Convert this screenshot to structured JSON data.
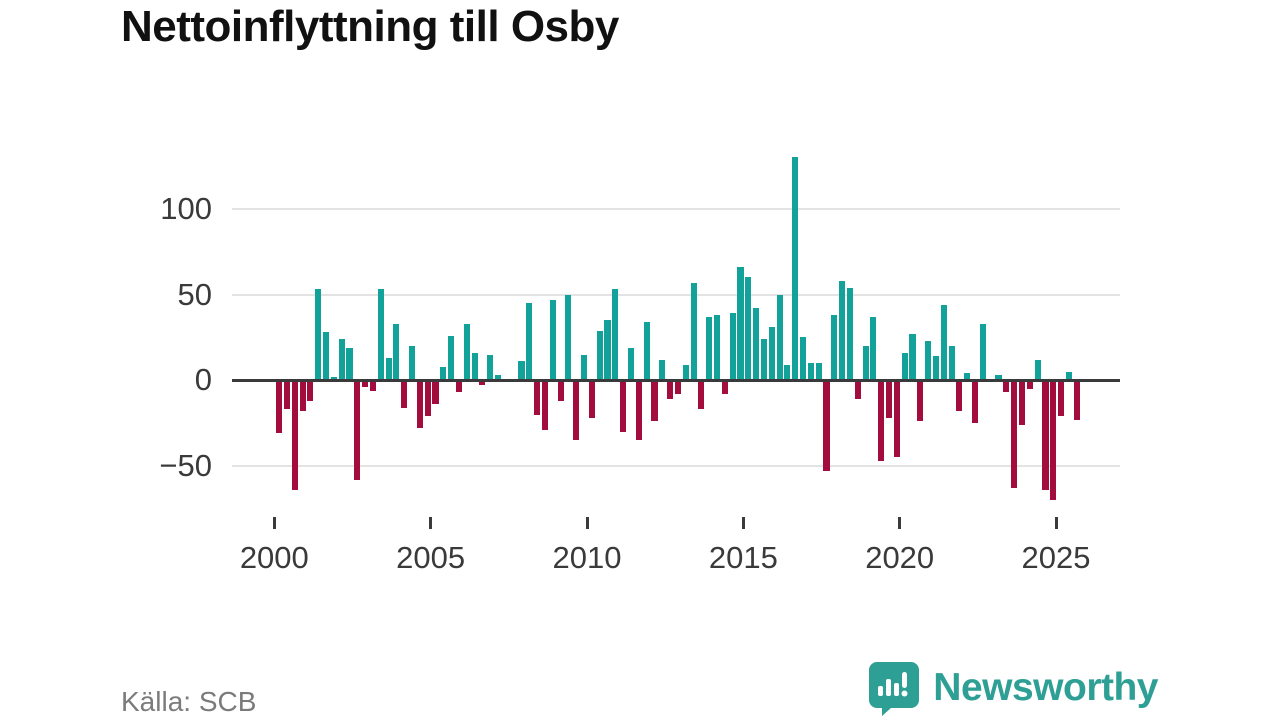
{
  "title": "Nettoinflyttning till Osby",
  "source_text": "Källa: SCB",
  "brand": {
    "name": "Newsworthy",
    "icon": "newsworthy-bubble-chart-icon",
    "color": "#2e9f94"
  },
  "colors": {
    "positive_bar": "#12a29a",
    "negative_bar": "#a30d3d",
    "grid": "#e3e3e3",
    "zero_line": "#3a3a3a",
    "axis_text": "#3a3a3a",
    "source_text": "#7b7b7b"
  },
  "chart_data": {
    "type": "bar",
    "title": "Nettoinflyttning till Osby",
    "frequency": "quarterly",
    "start_year": 2000,
    "start_quarter": 1,
    "end_year": 2025,
    "end_quarter": 3,
    "x_tick_years": [
      2000,
      2005,
      2010,
      2015,
      2020,
      2025
    ],
    "y_ticks": [
      100,
      50,
      0,
      -50
    ],
    "y_tick_labels": [
      "100",
      "50",
      "0",
      "−50"
    ],
    "ylim": [
      -75,
      135
    ],
    "grid": true,
    "legend": false,
    "values": [
      -31,
      -17,
      -64,
      -18,
      -12,
      53,
      28,
      2,
      24,
      19,
      -58,
      -4,
      -6,
      53,
      13,
      33,
      -16,
      20,
      -28,
      -21,
      -14,
      8,
      26,
      -7,
      33,
      16,
      -3,
      15,
      3,
      0,
      0,
      11,
      45,
      -20,
      -29,
      47,
      -12,
      50,
      -35,
      15,
      -22,
      29,
      35,
      53,
      -30,
      19,
      -35,
      34,
      -24,
      12,
      -11,
      -8,
      9,
      57,
      -17,
      37,
      38,
      -8,
      39,
      66,
      60,
      42,
      24,
      31,
      50,
      9,
      130,
      25,
      10,
      10,
      -53,
      38,
      58,
      54,
      -11,
      20,
      37,
      -47,
      -22,
      -45,
      16,
      27,
      -24,
      23,
      14,
      44,
      20,
      -18,
      4,
      -25,
      33,
      0,
      3,
      -7,
      -63,
      -26,
      -5,
      12,
      -64,
      -70,
      -21,
      5,
      -23
    ]
  }
}
